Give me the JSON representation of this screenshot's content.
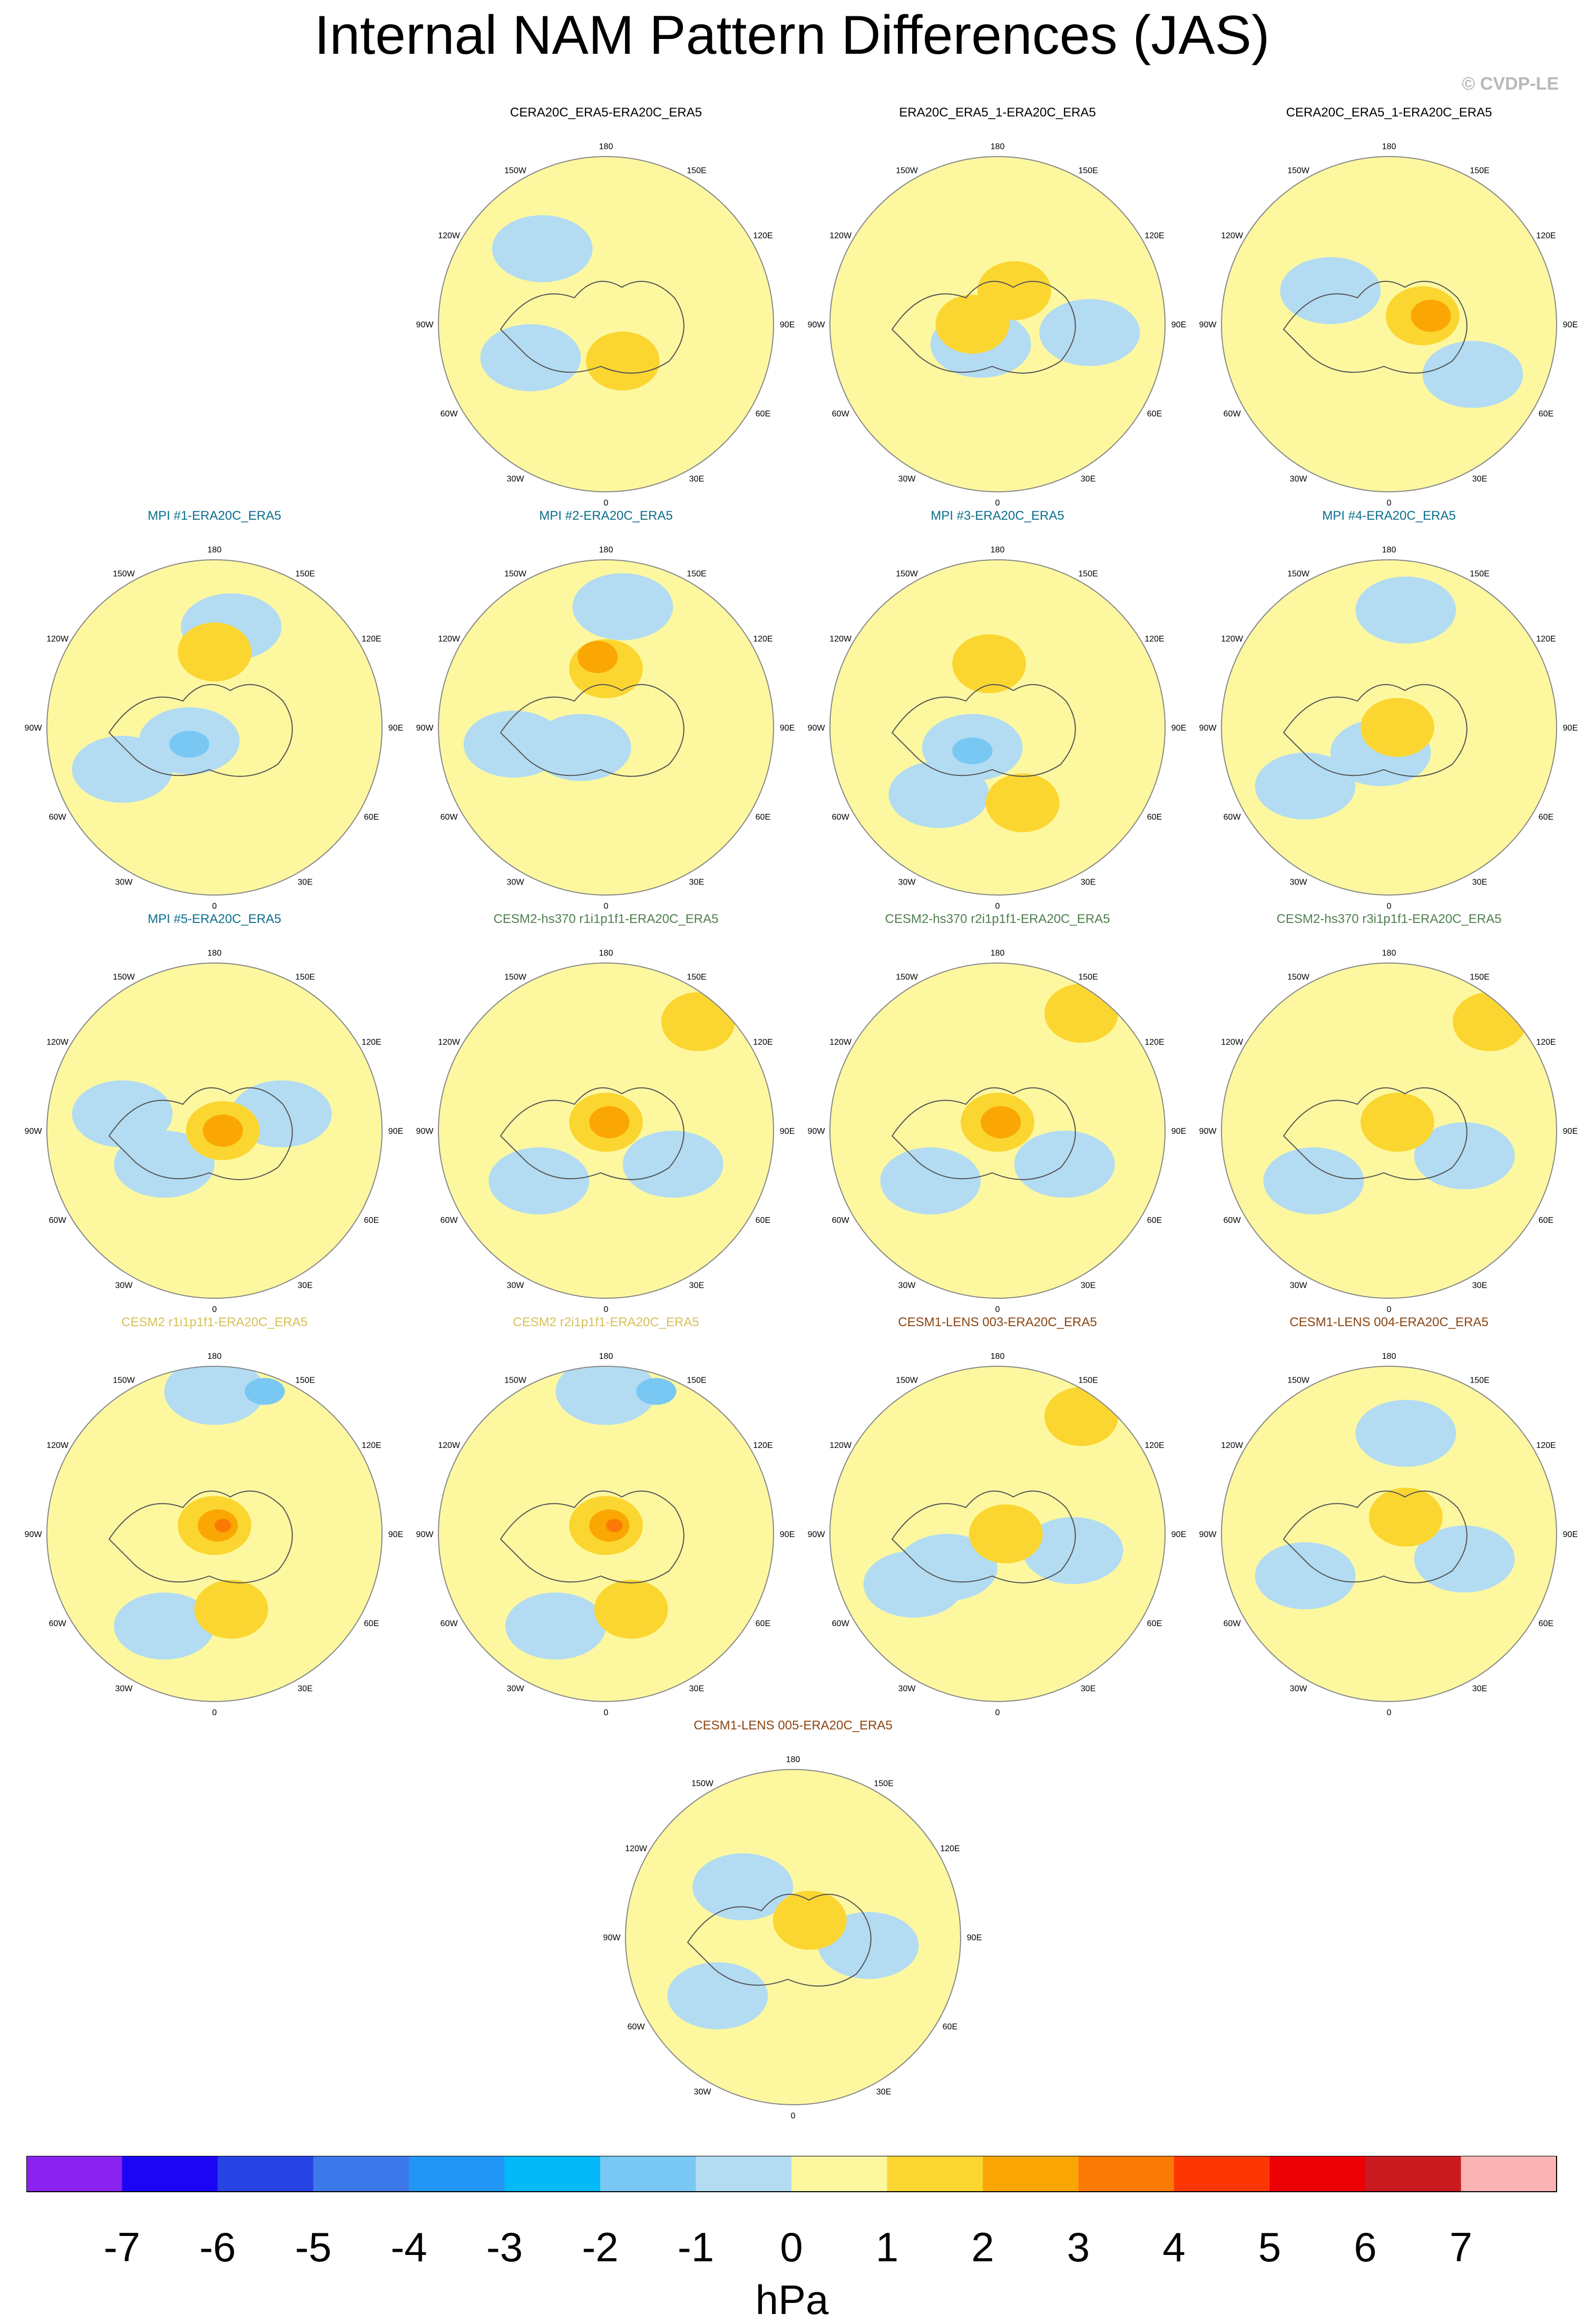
{
  "title": "Internal NAM Pattern Differences (JAS)",
  "copyright": "© CVDP-LE",
  "chart_data": {
    "type": "polar contour maps",
    "units": "hPa",
    "lon_labels": [
      "180",
      "150E",
      "120E",
      "90E",
      "60E",
      "30E",
      "0",
      "30W",
      "60W",
      "90W",
      "120W",
      "150W"
    ],
    "colorbar": {
      "ticks": [
        "-7",
        "-6",
        "-5",
        "-4",
        "-3",
        "-2",
        "-1",
        "0",
        "1",
        "2",
        "3",
        "4",
        "5",
        "6",
        "7"
      ],
      "colors": [
        "#8a23f0",
        "#1c05f5",
        "#2743e3",
        "#3d78ea",
        "#2196f7",
        "#04b9f8",
        "#79c8f4",
        "#b3dcf2",
        "#fdf8a0",
        "#fbd631",
        "#fba703",
        "#fb7a05",
        "#fd3704",
        "#eb0006",
        "#c91a20",
        "#fbb3b4"
      ]
    },
    "panels": [
      {
        "title": "CERA20C_ERA5-ERA20C_ERA5",
        "title_color": "#000000",
        "highs": [
          {
            "rx": 0.1,
            "ry": 0.22,
            "v": 1
          }
        ],
        "lows": [
          {
            "rx": -0.38,
            "ry": -0.45,
            "v": -1
          },
          {
            "rx": -0.45,
            "ry": 0.2,
            "v": -1
          }
        ]
      },
      {
        "title": "ERA20C_ERA5_1-ERA20C_ERA5",
        "title_color": "#000000",
        "highs": [
          {
            "rx": -0.15,
            "ry": 0,
            "v": 1
          },
          {
            "rx": 0.1,
            "ry": -0.2,
            "v": 1
          }
        ],
        "lows": [
          {
            "rx": -0.1,
            "ry": 0.12,
            "v": -1
          },
          {
            "rx": 0.55,
            "ry": 0.05,
            "v": -1
          }
        ]
      },
      {
        "title": "CERA20C_ERA5_1-ERA20C_ERA5",
        "title_color": "#000000",
        "highs": [
          {
            "rx": 0.2,
            "ry": -0.05,
            "v": 1
          },
          {
            "rx": 0.25,
            "ry": -0.05,
            "v": 2
          }
        ],
        "lows": [
          {
            "rx": -0.35,
            "ry": -0.2,
            "v": -1
          },
          {
            "rx": 0.5,
            "ry": 0.3,
            "v": -1
          }
        ]
      },
      {
        "title": "MPI #1-ERA20C_ERA5",
        "title_color": "#0b6e8c",
        "highs": [
          {
            "rx": 0,
            "ry": -0.45,
            "v": 1
          }
        ],
        "lows": [
          {
            "rx": -0.15,
            "ry": 0.08,
            "v": -1
          },
          {
            "rx": -0.15,
            "ry": 0.1,
            "v": -2
          },
          {
            "rx": -0.55,
            "ry": 0.25,
            "v": -1
          },
          {
            "rx": 0.1,
            "ry": -0.6,
            "v": -1
          }
        ]
      },
      {
        "title": "MPI #2-ERA20C_ERA5",
        "title_color": "#0b6e8c",
        "highs": [
          {
            "rx": 0,
            "ry": -0.35,
            "v": 1
          },
          {
            "rx": -0.05,
            "ry": -0.42,
            "v": 2
          }
        ],
        "lows": [
          {
            "rx": -0.15,
            "ry": 0.12,
            "v": -1
          },
          {
            "rx": -0.55,
            "ry": 0.1,
            "v": -1
          },
          {
            "rx": 0.1,
            "ry": -0.72,
            "v": -1
          }
        ]
      },
      {
        "title": "MPI #3-ERA20C_ERA5",
        "title_color": "#0b6e8c",
        "highs": [
          {
            "rx": -0.05,
            "ry": -0.38,
            "v": 1
          },
          {
            "rx": 0.15,
            "ry": 0.45,
            "v": 1
          }
        ],
        "lows": [
          {
            "rx": -0.15,
            "ry": 0.12,
            "v": -1
          },
          {
            "rx": -0.15,
            "ry": 0.14,
            "v": -2
          },
          {
            "rx": -0.35,
            "ry": 0.4,
            "v": -1
          }
        ]
      },
      {
        "title": "MPI #4-ERA20C_ERA5",
        "title_color": "#0b6e8c",
        "highs": [
          {
            "rx": 0.05,
            "ry": 0,
            "v": 1
          }
        ],
        "lows": [
          {
            "rx": -0.05,
            "ry": 0.15,
            "v": -1
          },
          {
            "rx": -0.5,
            "ry": 0.35,
            "v": -1
          },
          {
            "rx": 0.1,
            "ry": -0.7,
            "v": -1
          }
        ]
      },
      {
        "title": "MPI #5-ERA20C_ERA5",
        "title_color": "#0b6e8c",
        "highs": [
          {
            "rx": 0.05,
            "ry": 0,
            "v": 1
          },
          {
            "rx": 0.05,
            "ry": 0,
            "v": 2
          }
        ],
        "lows": [
          {
            "rx": -0.3,
            "ry": 0.2,
            "v": -1
          },
          {
            "rx": 0.4,
            "ry": -0.1,
            "v": -1
          },
          {
            "rx": -0.55,
            "ry": -0.1,
            "v": -1
          }
        ]
      },
      {
        "title": "CESM2-hs370 r1i1p1f1-ERA20C_ERA5",
        "title_color": "#4f7f4f",
        "highs": [
          {
            "rx": 0,
            "ry": -0.05,
            "v": 1
          },
          {
            "rx": 0.02,
            "ry": -0.05,
            "v": 2
          },
          {
            "rx": 0.55,
            "ry": -0.65,
            "v": 1
          }
        ],
        "lows": [
          {
            "rx": -0.4,
            "ry": 0.3,
            "v": -1
          },
          {
            "rx": 0.4,
            "ry": 0.2,
            "v": -1
          }
        ]
      },
      {
        "title": "CESM2-hs370 r2i1p1f1-ERA20C_ERA5",
        "title_color": "#4f7f4f",
        "highs": [
          {
            "rx": 0,
            "ry": -0.05,
            "v": 1
          },
          {
            "rx": 0.02,
            "ry": -0.05,
            "v": 2
          },
          {
            "rx": 0.5,
            "ry": -0.7,
            "v": 1
          }
        ],
        "lows": [
          {
            "rx": -0.4,
            "ry": 0.3,
            "v": -1
          },
          {
            "rx": 0.4,
            "ry": 0.2,
            "v": -1
          }
        ]
      },
      {
        "title": "CESM2-hs370 r3i1p1f1-ERA20C_ERA5",
        "title_color": "#4f7f4f",
        "highs": [
          {
            "rx": 0.05,
            "ry": -0.05,
            "v": 1
          },
          {
            "rx": 0.6,
            "ry": -0.65,
            "v": 1
          }
        ],
        "lows": [
          {
            "rx": -0.45,
            "ry": 0.3,
            "v": -1
          },
          {
            "rx": 0.45,
            "ry": 0.15,
            "v": -1
          }
        ]
      },
      {
        "title": "CESM2 r1i1p1f1-ERA20C_ERA5",
        "title_color": "#d8c056",
        "highs": [
          {
            "rx": 0,
            "ry": -0.05,
            "v": 1
          },
          {
            "rx": 0.02,
            "ry": -0.05,
            "v": 2
          },
          {
            "rx": 0.05,
            "ry": -0.05,
            "v": 3
          },
          {
            "rx": 0.1,
            "ry": 0.45,
            "v": 1
          }
        ],
        "lows": [
          {
            "rx": 0,
            "ry": -0.85,
            "v": -1
          },
          {
            "rx": 0.3,
            "ry": -0.85,
            "v": -2
          },
          {
            "rx": -0.3,
            "ry": 0.55,
            "v": -1
          }
        ]
      },
      {
        "title": "CESM2 r2i1p1f1-ERA20C_ERA5",
        "title_color": "#d8c056",
        "highs": [
          {
            "rx": 0,
            "ry": -0.05,
            "v": 1
          },
          {
            "rx": 0.02,
            "ry": -0.05,
            "v": 2
          },
          {
            "rx": 0.05,
            "ry": -0.05,
            "v": 3
          },
          {
            "rx": 0.15,
            "ry": 0.45,
            "v": 1
          }
        ],
        "lows": [
          {
            "rx": 0,
            "ry": -0.85,
            "v": -1
          },
          {
            "rx": 0.3,
            "ry": -0.85,
            "v": -2
          },
          {
            "rx": -0.3,
            "ry": 0.55,
            "v": -1
          }
        ]
      },
      {
        "title": "CESM1-LENS 003-ERA20C_ERA5",
        "title_color": "#8b4513",
        "highs": [
          {
            "rx": 0.05,
            "ry": 0,
            "v": 1
          },
          {
            "rx": 0.5,
            "ry": -0.7,
            "v": 1
          }
        ],
        "lows": [
          {
            "rx": -0.3,
            "ry": 0.2,
            "v": -1
          },
          {
            "rx": 0.45,
            "ry": 0.1,
            "v": -1
          },
          {
            "rx": -0.5,
            "ry": 0.3,
            "v": -1
          }
        ]
      },
      {
        "title": "CESM1-LENS 004-ERA20C_ERA5",
        "title_color": "#8b4513",
        "highs": [
          {
            "rx": 0.1,
            "ry": -0.1,
            "v": 1
          }
        ],
        "lows": [
          {
            "rx": -0.5,
            "ry": 0.25,
            "v": -1
          },
          {
            "rx": 0.45,
            "ry": 0.15,
            "v": -1
          },
          {
            "rx": 0.1,
            "ry": -0.6,
            "v": -1
          }
        ]
      },
      {
        "title": "CESM1-LENS 005-ERA20C_ERA5",
        "title_color": "#8b4513",
        "highs": [
          {
            "rx": 0.1,
            "ry": -0.1,
            "v": 1
          }
        ],
        "lows": [
          {
            "rx": -0.45,
            "ry": 0.35,
            "v": -1
          },
          {
            "rx": 0.45,
            "ry": 0.05,
            "v": -1
          },
          {
            "rx": -0.3,
            "ry": -0.3,
            "v": -1
          }
        ]
      }
    ]
  }
}
